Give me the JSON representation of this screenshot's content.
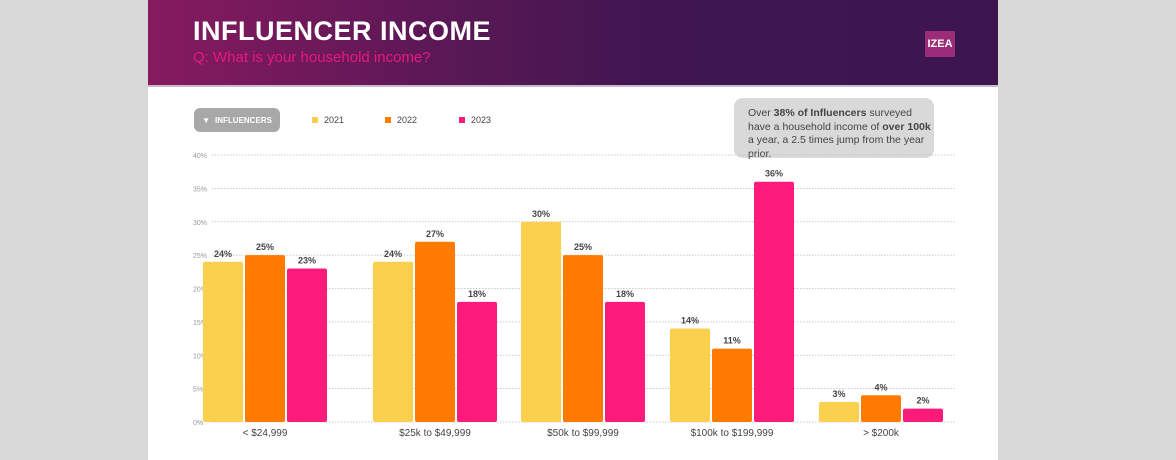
{
  "header": {
    "title": "INFLUENCER INCOME",
    "subtitle": "Q: What is your household income?",
    "logo": "IZEA"
  },
  "filter": {
    "label": "INFLUENCERS",
    "icon": "filter-icon"
  },
  "note": {
    "pre": "Over ",
    "b1": "38% of Influencers",
    "mid": " surveyed have a household income of ",
    "b2": "over 100k",
    "post": " a year, a 2.5 times jump from the year prior."
  },
  "chart_data": {
    "type": "bar",
    "title": "INFLUENCER INCOME",
    "categories": [
      "< $24,999",
      "$25k to $49,999",
      "$50k to $99,999",
      "$100k to $199,999",
      "> $200k"
    ],
    "series": [
      {
        "name": "2021",
        "color": "#fcd04f",
        "values": [
          24,
          24,
          30,
          14,
          3
        ],
        "labels": [
          "24%",
          "24%",
          "30%",
          "14%",
          "3%"
        ]
      },
      {
        "name": "2022",
        "color": "#ff7a00",
        "values": [
          25,
          27,
          25,
          11,
          4
        ],
        "labels": [
          "25%",
          "27%",
          "25%",
          "11%",
          "4%"
        ]
      },
      {
        "name": "2023",
        "color": "#fc1a7a",
        "values": [
          23,
          18,
          18,
          36,
          2
        ],
        "labels": [
          "23%",
          "18%",
          "18%",
          "36%",
          "2%"
        ]
      }
    ],
    "yticks": [
      "0%",
      "5%",
      "10%",
      "15%",
      "20%",
      "25%",
      "30%",
      "35%",
      "40%"
    ],
    "ylim": [
      0,
      40
    ],
    "grid": true,
    "legend": "top-left"
  }
}
